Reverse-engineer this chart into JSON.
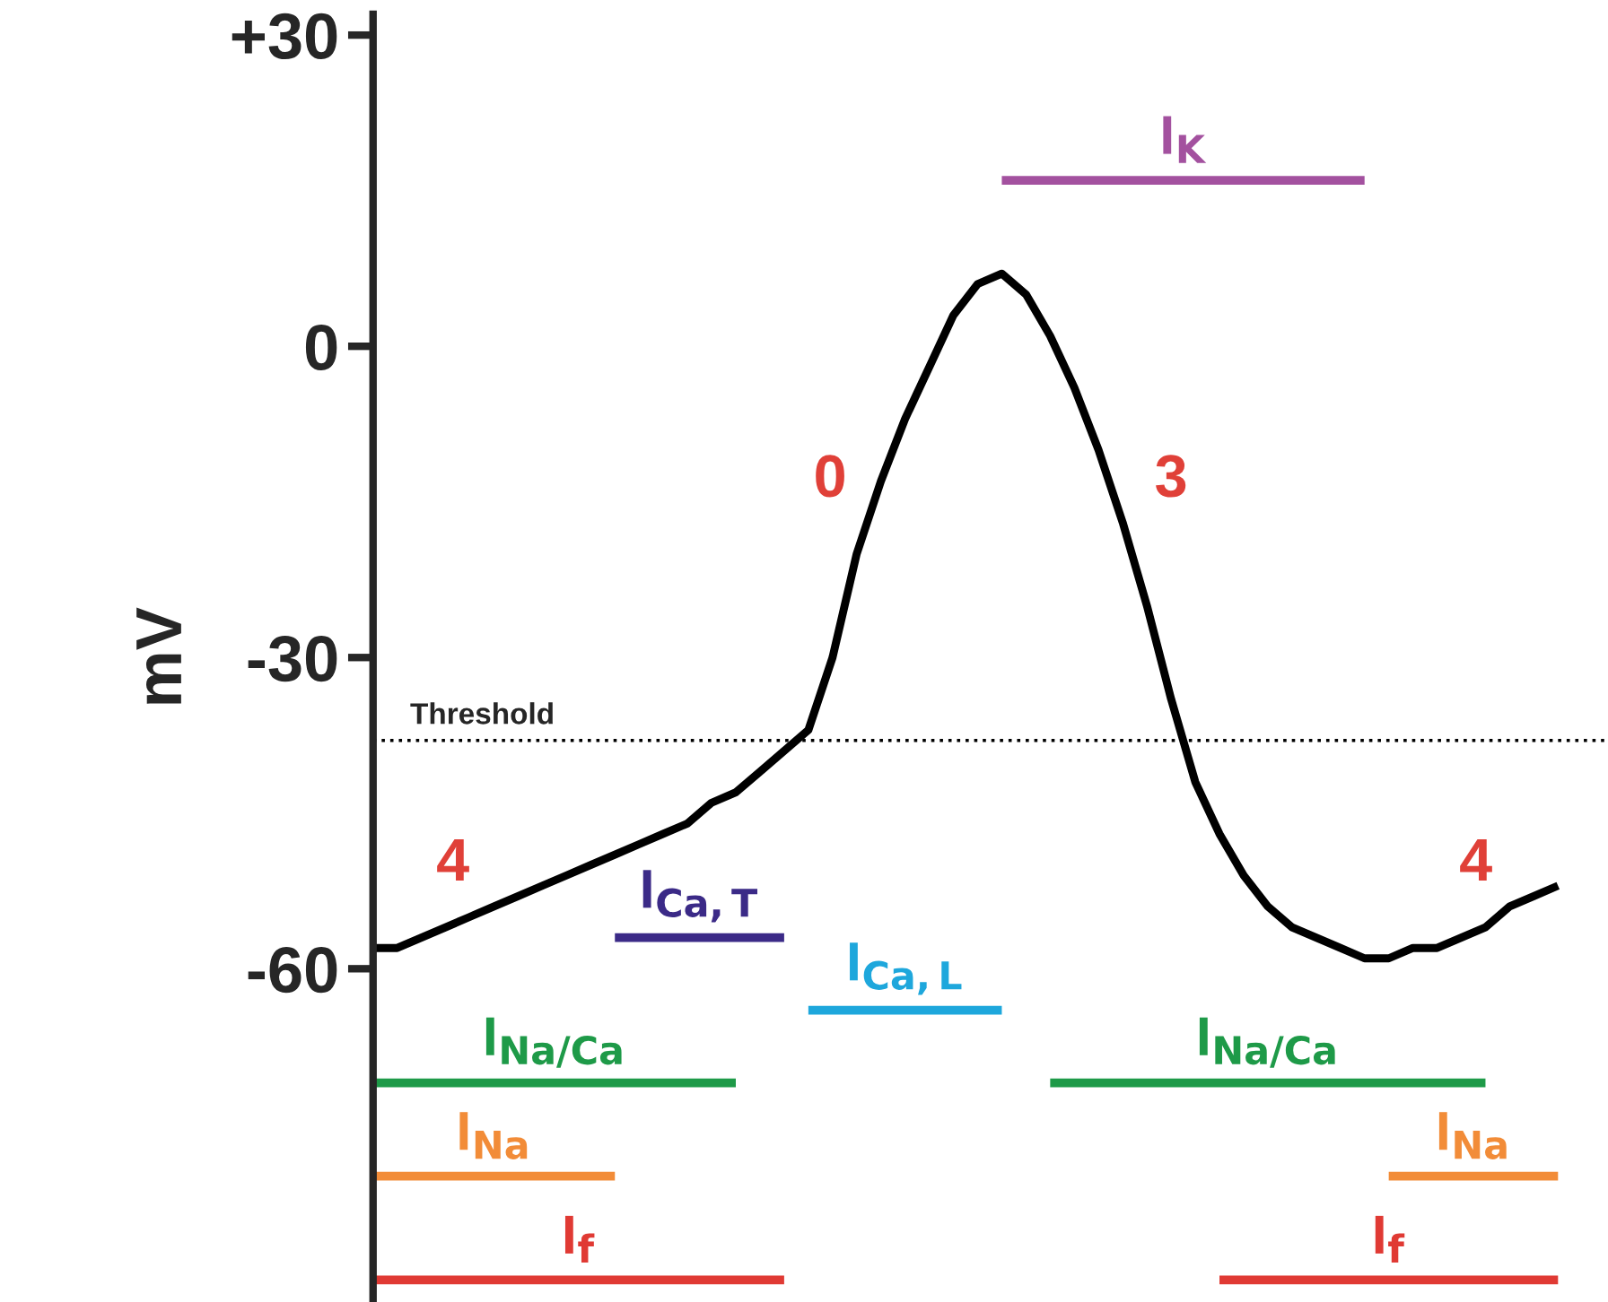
{
  "chart_data": {
    "type": "line",
    "ylabel": "mV",
    "categories": [
      null,
      null,
      null,
      null,
      null,
      null,
      null,
      null,
      null,
      null,
      null,
      null,
      null,
      null,
      null,
      null,
      null,
      null,
      null,
      null,
      null,
      null,
      null,
      null,
      null,
      null,
      null,
      null,
      null,
      null,
      null,
      null,
      null,
      null,
      null,
      null,
      null,
      null,
      null,
      null,
      null,
      null,
      null,
      null,
      null,
      null,
      null,
      null,
      null,
      null
    ],
    "series": [
      {
        "color": "#000000",
        "values": [
          -58,
          -58,
          -57,
          -56,
          -55,
          -54,
          -53,
          -52,
          -51,
          -50,
          -49,
          -48,
          -47,
          -46,
          -44,
          -43,
          -41,
          -39,
          -37,
          -30,
          -20,
          -13,
          -7,
          -2,
          3,
          6,
          7,
          5,
          1,
          -4,
          -10,
          -17,
          -25,
          -34,
          -42,
          -47,
          -51,
          -54,
          -56,
          -57,
          -58,
          -59,
          -59,
          -58,
          -58,
          -57,
          -56,
          -54,
          -53,
          -52
        ]
      },
      {
        "name": "I$_{K}$",
        "color": "#a3519f",
        "values": [
          null,
          null,
          null,
          null,
          null,
          null,
          null,
          null,
          null,
          null,
          null,
          null,
          null,
          null,
          null,
          null,
          null,
          null,
          null,
          null,
          null,
          null,
          null,
          null,
          null,
          null,
          16,
          16,
          16,
          16,
          16,
          16,
          16,
          16,
          16,
          16,
          16,
          16,
          16,
          16,
          16,
          16,
          null,
          null,
          null,
          null,
          null,
          null,
          null,
          null
        ]
      },
      {
        "name": "I$_{Ca,T}$",
        "color": "#3b2a87",
        "values": [
          null,
          null,
          null,
          null,
          null,
          null,
          null,
          null,
          null,
          null,
          -57,
          -57,
          -57,
          -57,
          -57,
          -57,
          -57,
          -57,
          null,
          null,
          null,
          null,
          null,
          null,
          null,
          null,
          null,
          null,
          null,
          null,
          null,
          null,
          null,
          null,
          null,
          null,
          null,
          null,
          null,
          null,
          null,
          null,
          null,
          null,
          null,
          null,
          null,
          null,
          null,
          null
        ]
      },
      {
        "name": "I$_{Ca,L}$",
        "color": "#1ea7dc",
        "values": [
          null,
          null,
          null,
          null,
          null,
          null,
          null,
          null,
          null,
          null,
          null,
          null,
          null,
          null,
          null,
          null,
          null,
          null,
          -64,
          -64,
          -64,
          -64,
          -64,
          -64,
          -64,
          -64,
          -64,
          null,
          null,
          null,
          null,
          null,
          null,
          null,
          null,
          null,
          null,
          null,
          null,
          null,
          null,
          null,
          null,
          null,
          null,
          null,
          null,
          null,
          null,
          null
        ]
      },
      {
        "name": "I$_{Na/Ca}$",
        "color": "#1e9a48",
        "values": [
          -71,
          -71,
          -71,
          -71,
          -71,
          -71,
          -71,
          -71,
          -71,
          -71,
          -71,
          -71,
          -71,
          -71,
          -71,
          -71,
          null,
          null,
          null,
          null,
          null,
          null,
          null,
          null,
          null,
          null,
          null,
          null,
          -71,
          -71,
          -71,
          -71,
          -71,
          -71,
          -71,
          -71,
          -71,
          -71,
          -71,
          -71,
          -71,
          -71,
          -71,
          -71,
          -71,
          -71,
          -71,
          null,
          null,
          null
        ]
      },
      {
        "name": "I$_{Na}$",
        "color": "#f28c38",
        "values": [
          -80,
          -80,
          -80,
          -80,
          -80,
          -80,
          -80,
          -80,
          -80,
          -80,
          -80,
          null,
          null,
          null,
          null,
          null,
          null,
          null,
          null,
          null,
          null,
          null,
          null,
          null,
          null,
          null,
          null,
          null,
          null,
          null,
          null,
          null,
          null,
          null,
          null,
          null,
          null,
          null,
          null,
          null,
          null,
          null,
          -80,
          -80,
          -80,
          -80,
          -80,
          -80,
          -80,
          -80
        ]
      },
      {
        "name": "I$_{f}$",
        "color": "#e03a34",
        "values": [
          -90,
          -90,
          -90,
          -90,
          -90,
          -90,
          -90,
          -90,
          -90,
          -90,
          -90,
          -90,
          -90,
          -90,
          -90,
          -90,
          -90,
          -90,
          null,
          null,
          null,
          null,
          null,
          null,
          null,
          null,
          null,
          null,
          null,
          null,
          null,
          null,
          null,
          null,
          null,
          -90,
          -90,
          -90,
          -90,
          -90,
          -90,
          -90,
          -90,
          -90,
          -90,
          -90,
          -90,
          -90,
          -90,
          -90
        ]
      }
    ],
    "ylim": [
      -92,
      32
    ],
    "yticks": [
      {
        "value": 30,
        "label": "+30"
      },
      0,
      -30,
      -60
    ],
    "tick_labels": "y",
    "grid": false,
    "legend": false,
    "marker": "none",
    "line_style": "solid",
    "ref_lines": [
      {
        "axis": "y",
        "value": -38,
        "label": "Threshold",
        "color": "#000000",
        "line_style": "dotted"
      }
    ],
    "annotations": [
      "0",
      "3",
      "4",
      "4"
    ]
  }
}
